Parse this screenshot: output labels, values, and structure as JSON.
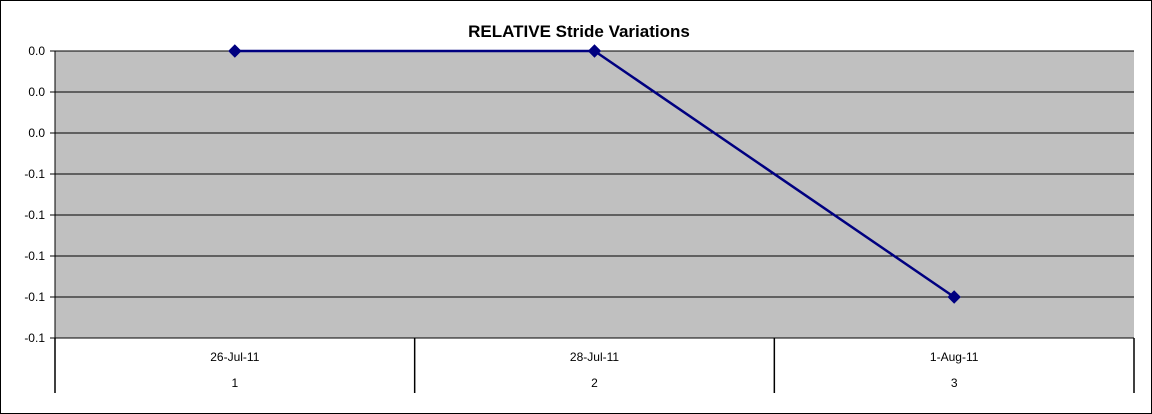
{
  "chart_data": {
    "type": "line",
    "title": "RELATIVE Stride Variations",
    "xlabel": "",
    "ylabel": "",
    "categories": [
      {
        "date": "26-Jul-11",
        "index": "1"
      },
      {
        "date": "28-Jul-11",
        "index": "2"
      },
      {
        "date": "1-Aug-11",
        "index": "3"
      }
    ],
    "series": [
      {
        "values": [
          0.0,
          0.0,
          -0.12
        ]
      }
    ],
    "y_tick_labels": [
      "0.0",
      "0.0",
      "0.0",
      "-0.1",
      "-0.1",
      "-0.1",
      "-0.1",
      "-0.1"
    ],
    "ylim": [
      -0.14,
      0.0
    ],
    "grid": true,
    "legend": "none",
    "colors": {
      "plot_background": "#c0c0c0",
      "line": "#000080",
      "marker": "#000080",
      "gridline": "#000000"
    }
  }
}
